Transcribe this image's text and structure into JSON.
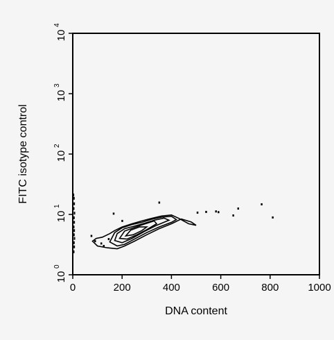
{
  "chart_data": {
    "type": "contour",
    "title": "",
    "xlabel": "DNA content",
    "ylabel": "FITC isotype control",
    "xscale": "linear",
    "yscale": "log",
    "xlim": [
      0,
      1000
    ],
    "ylim": [
      1,
      10000
    ],
    "grid": false,
    "legend": "none",
    "xticks": [
      {
        "value": 0,
        "label": "0"
      },
      {
        "value": 200,
        "label": "200"
      },
      {
        "value": 400,
        "label": "400"
      },
      {
        "value": 600,
        "label": "600"
      },
      {
        "value": 800,
        "label": "800"
      },
      {
        "value": 1000,
        "label": "1000"
      }
    ],
    "yticks": [
      {
        "value": 1,
        "base": "10",
        "exp": "0"
      },
      {
        "value": 10,
        "base": "10",
        "exp": "1"
      },
      {
        "value": 100,
        "base": "10",
        "exp": "2"
      },
      {
        "value": 1000,
        "base": "10",
        "exp": "3"
      },
      {
        "value": 10000,
        "base": "10",
        "exp": "4"
      }
    ],
    "contours": [
      {
        "level": 1,
        "points": [
          [
            80,
            3.6
          ],
          [
            100,
            3.0
          ],
          [
            140,
            2.8
          ],
          [
            180,
            2.7
          ],
          [
            210,
            3.0
          ],
          [
            250,
            3.6
          ],
          [
            300,
            4.6
          ],
          [
            350,
            5.8
          ],
          [
            400,
            7.0
          ],
          [
            440,
            8.4
          ],
          [
            480,
            7.5
          ],
          [
            500,
            6.6
          ],
          [
            470,
            7.0
          ],
          [
            430,
            8.6
          ],
          [
            400,
            9.8
          ],
          [
            360,
            9.4
          ],
          [
            320,
            8.6
          ],
          [
            280,
            7.8
          ],
          [
            240,
            7.0
          ],
          [
            200,
            6.2
          ],
          [
            170,
            5.4
          ],
          [
            150,
            4.8
          ],
          [
            120,
            4.2
          ],
          [
            95,
            4.0
          ]
        ]
      },
      {
        "level": 2,
        "points": [
          [
            150,
            3.5
          ],
          [
            180,
            3.0
          ],
          [
            210,
            3.2
          ],
          [
            250,
            3.9
          ],
          [
            300,
            5.0
          ],
          [
            350,
            6.2
          ],
          [
            400,
            7.4
          ],
          [
            420,
            8.2
          ],
          [
            400,
            9.3
          ],
          [
            360,
            9.0
          ],
          [
            320,
            8.3
          ],
          [
            280,
            7.4
          ],
          [
            240,
            6.8
          ],
          [
            200,
            6.0
          ],
          [
            170,
            5.0
          ]
        ]
      },
      {
        "level": 3,
        "points": [
          [
            170,
            3.7
          ],
          [
            200,
            3.4
          ],
          [
            240,
            4.0
          ],
          [
            290,
            5.2
          ],
          [
            340,
            6.6
          ],
          [
            390,
            8.0
          ],
          [
            370,
            8.7
          ],
          [
            330,
            8.0
          ],
          [
            290,
            7.1
          ],
          [
            250,
            6.4
          ],
          [
            210,
            5.8
          ],
          [
            180,
            4.8
          ]
        ]
      },
      {
        "level": 4,
        "points": [
          [
            190,
            4.0
          ],
          [
            220,
            3.9
          ],
          [
            260,
            4.6
          ],
          [
            300,
            5.6
          ],
          [
            340,
            7.0
          ],
          [
            330,
            7.8
          ],
          [
            290,
            6.9
          ],
          [
            250,
            6.1
          ],
          [
            210,
            5.3
          ]
        ]
      },
      {
        "level": 5,
        "points": [
          [
            215,
            4.4
          ],
          [
            245,
            4.6
          ],
          [
            280,
            5.4
          ],
          [
            300,
            6.2
          ],
          [
            270,
            6.2
          ],
          [
            235,
            5.5
          ]
        ]
      }
    ],
    "axis_events": [
      [
        4,
        2.4
      ],
      [
        6,
        2.9
      ],
      [
        5,
        3.4
      ],
      [
        7,
        4.0
      ],
      [
        5,
        4.6
      ],
      [
        6,
        5.4
      ],
      [
        4,
        6.2
      ],
      [
        6,
        7.4
      ],
      [
        5,
        8.8
      ],
      [
        7,
        10.5
      ],
      [
        4,
        12.5
      ],
      [
        6,
        15.0
      ],
      [
        5,
        18.5
      ],
      [
        3,
        21.0
      ]
    ],
    "outliers": [
      [
        75,
        4.4
      ],
      [
        90,
        3.6
      ],
      [
        115,
        3.3
      ],
      [
        125,
        3.0
      ],
      [
        145,
        3.9
      ],
      [
        165,
        10.3
      ],
      [
        200,
        7.8
      ],
      [
        350,
        15.7
      ],
      [
        505,
        10.7
      ],
      [
        540,
        11.0
      ],
      [
        580,
        11.2
      ],
      [
        590,
        10.9
      ],
      [
        650,
        9.6
      ],
      [
        670,
        12.5
      ],
      [
        765,
        14.7
      ],
      [
        810,
        8.9
      ]
    ]
  }
}
